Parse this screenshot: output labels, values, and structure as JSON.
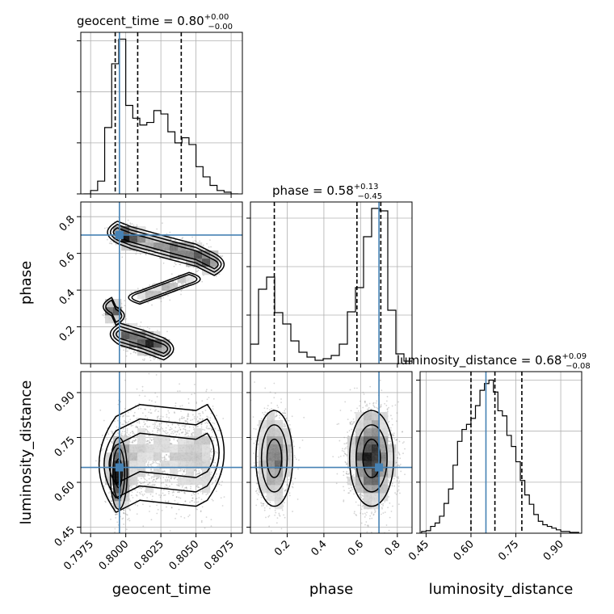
{
  "chart_data": {
    "type": "corner",
    "parameters": [
      "geocent_time",
      "phase",
      "luminosity_distance"
    ],
    "truths": [
      0.79955,
      0.7,
      0.65
    ],
    "marginals": [
      {
        "title": {
          "name": "geocent_time",
          "median": "0.80",
          "plus": "+0.00",
          "minus": "−0.00"
        },
        "bin_edges": [
          0.797,
          0.7975,
          0.798,
          0.7985,
          0.799,
          0.7995,
          0.8,
          0.8005,
          0.801,
          0.8015,
          0.802,
          0.8025,
          0.803,
          0.8035,
          0.804,
          0.8045,
          0.805,
          0.8055,
          0.806,
          0.8065,
          0.807,
          0.8075,
          0.808
        ],
        "counts": [
          0,
          4,
          15,
          78,
          153,
          182,
          104,
          89,
          81,
          84,
          98,
          94,
          73,
          60,
          66,
          58,
          32,
          20,
          10,
          4,
          2,
          0
        ],
        "quantiles": [
          0.79925,
          0.80085,
          0.80395
        ],
        "ylim": [
          0,
          190
        ]
      },
      {
        "title": {
          "name": "phase",
          "median": "0.58",
          "plus": "+0.13",
          "minus": "−0.45"
        },
        "bin_edges": [
          0.0,
          0.044,
          0.088,
          0.132,
          0.176,
          0.22,
          0.264,
          0.308,
          0.352,
          0.396,
          0.44,
          0.484,
          0.528,
          0.572,
          0.616,
          0.66,
          0.704,
          0.748,
          0.792,
          0.836,
          0.88
        ],
        "counts": [
          24,
          92,
          107,
          63,
          49,
          28,
          14,
          8,
          4,
          6,
          10,
          24,
          64,
          94,
          157,
          192,
          189,
          66,
          12,
          3
        ],
        "quantiles": [
          0.13,
          0.58,
          0.71
        ],
        "ylim": [
          0,
          200
        ]
      },
      {
        "title": {
          "name": "luminosity_distance",
          "median": "0.68",
          "plus": "+0.09",
          "minus": "−0.08"
        },
        "bin_edges": [
          0.42,
          0.435,
          0.45,
          0.465,
          0.48,
          0.495,
          0.51,
          0.525,
          0.54,
          0.555,
          0.57,
          0.585,
          0.6,
          0.615,
          0.63,
          0.645,
          0.66,
          0.675,
          0.69,
          0.705,
          0.72,
          0.735,
          0.75,
          0.765,
          0.78,
          0.795,
          0.81,
          0.825,
          0.84,
          0.855,
          0.87,
          0.885,
          0.9,
          0.915,
          0.93,
          0.945,
          0.96
        ],
        "counts": [
          0,
          2,
          3,
          8,
          12,
          20,
          35,
          52,
          80,
          108,
          122,
          128,
          135,
          150,
          168,
          176,
          180,
          166,
          144,
          138,
          115,
          102,
          84,
          62,
          45,
          34,
          22,
          14,
          10,
          8,
          6,
          4,
          2,
          2,
          1,
          1
        ],
        "quantiles": [
          0.6,
          0.68,
          0.77
        ],
        "ylim": [
          0,
          190
        ]
      }
    ],
    "joints": [
      {
        "x": "geocent_time",
        "y": "phase",
        "clusters": [
          {
            "path": [
              [
                0.7994,
                0.715
              ],
              [
                0.8004,
                0.685
              ],
              [
                0.803,
                0.63
              ],
              [
                0.805,
                0.59
              ],
              [
                0.8063,
                0.54
              ]
            ],
            "spread": [
              0.00035,
              0.03
            ],
            "weight": 1.0
          },
          {
            "path": [
              [
                0.7996,
                0.16
              ],
              [
                0.8013,
                0.12
              ],
              [
                0.8027,
                0.08
              ]
            ],
            "spread": [
              0.00035,
              0.03
            ],
            "weight": 0.55
          },
          {
            "path": [
              [
                0.801,
                0.36
              ],
              [
                0.8045,
                0.46
              ]
            ],
            "spread": [
              0.0004,
              0.018
            ],
            "weight": 0.15
          },
          {
            "path": [
              [
                0.799,
                0.31
              ],
              [
                0.7993,
                0.26
              ]
            ],
            "spread": [
              0.0003,
              0.025
            ],
            "weight": 0.15
          }
        ]
      },
      {
        "x": "geocent_time",
        "y": "luminosity_distance",
        "clusters": [
          {
            "path": [
              [
                0.7993,
                0.66
              ],
              [
                0.801,
                0.7
              ],
              [
                0.803,
                0.69
              ],
              [
                0.805,
                0.68
              ],
              [
                0.8058,
                0.7
              ]
            ],
            "spread": [
              0.0006,
              0.08
            ],
            "weight": 1.0
          },
          {
            "path": [
              [
                0.7995,
                0.63
              ]
            ],
            "spread": [
              0.0003,
              0.06
            ],
            "weight": 0.5
          }
        ]
      },
      {
        "x": "phase",
        "y": "luminosity_distance",
        "clusters": [
          {
            "path": [
              [
                0.13,
                0.68
              ]
            ],
            "spread": [
              0.05,
              0.08
            ],
            "weight": 0.5
          },
          {
            "path": [
              [
                0.66,
                0.68
              ]
            ],
            "spread": [
              0.06,
              0.08
            ],
            "weight": 1.0
          }
        ]
      }
    ],
    "axes": {
      "geocent_time": {
        "range": [
          0.7968,
          0.8083
        ],
        "ticks": [
          0.7975,
          0.8,
          0.8025,
          0.805,
          0.8075
        ],
        "tick_labels": [
          "0.7975",
          "0.8000",
          "0.8025",
          "0.8050",
          "0.8075"
        ],
        "label": "geocent_time"
      },
      "phase": {
        "range": [
          0.0,
          0.88
        ],
        "ticks": [
          0.2,
          0.4,
          0.6,
          0.8
        ],
        "tick_labels": [
          "0.2",
          "0.4",
          "0.6",
          "0.8"
        ],
        "label": "phase"
      },
      "luminosity_distance": {
        "range": [
          0.43,
          0.97
        ],
        "ticks": [
          0.45,
          0.6,
          0.75,
          0.9
        ],
        "tick_labels": [
          "0.45",
          "0.60",
          "0.75",
          "0.90"
        ],
        "label": "luminosity_distance"
      }
    },
    "grid": true,
    "colors": {
      "truth": "#4682b4",
      "hist": "#000000",
      "quantile": "#000000",
      "points": "#888888",
      "grid": "#b0b0b0"
    }
  }
}
